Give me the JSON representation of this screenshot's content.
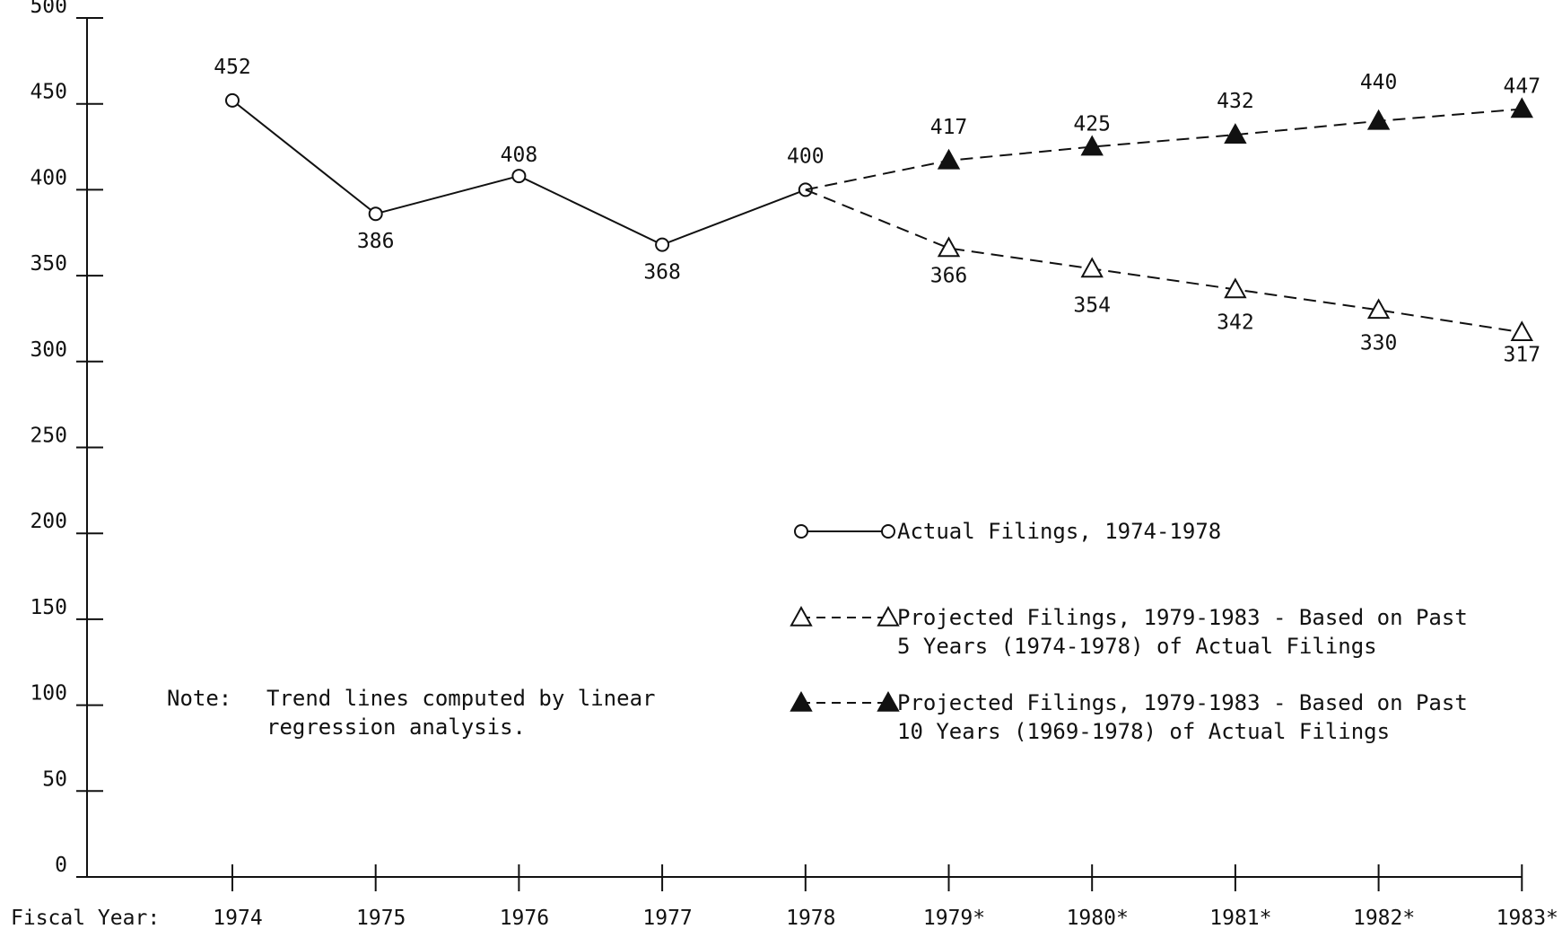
{
  "chart_data": {
    "type": "line",
    "xlabel": "Fiscal Year:",
    "ylabel": "",
    "ylim": [
      0,
      500
    ],
    "yticks": [
      0,
      50,
      100,
      150,
      200,
      250,
      300,
      350,
      400,
      450,
      500
    ],
    "categories": [
      "1974",
      "1975",
      "1976",
      "1977",
      "1978",
      "1979*",
      "1980*",
      "1981*",
      "1982*",
      "1983*"
    ],
    "grid": false,
    "series": [
      {
        "name": "Actual Filings, 1974-1978",
        "marker": "open-circle",
        "line": "solid",
        "x": [
          "1974",
          "1975",
          "1976",
          "1977",
          "1978"
        ],
        "values": [
          452,
          386,
          408,
          368,
          400
        ],
        "labels": [
          "452",
          "386",
          "408",
          "368",
          "400"
        ]
      },
      {
        "name": "Projected Filings, 1979-1983 - Based on Past 5 Years (1974-1978) of Actual Filings",
        "marker": "open-triangle",
        "line": "dashed",
        "x": [
          "1978",
          "1979*",
          "1980*",
          "1981*",
          "1982*",
          "1983*"
        ],
        "values": [
          400,
          366,
          354,
          342,
          330,
          317
        ],
        "labels": [
          "",
          "366",
          "354",
          "342",
          "330",
          "317"
        ]
      },
      {
        "name": "Projected Filings, 1979-1983 - Based on Past 10 Years (1969-1978) of Actual Filings",
        "marker": "filled-triangle",
        "line": "dashed",
        "x": [
          "1978",
          "1979*",
          "1980*",
          "1981*",
          "1982*",
          "1983*"
        ],
        "values": [
          400,
          417,
          425,
          432,
          440,
          447
        ],
        "labels": [
          "",
          "417",
          "425",
          "432",
          "440",
          "447"
        ]
      }
    ],
    "legend": {
      "placement": "lower-right",
      "entries": [
        {
          "marker": "open-circle",
          "line": "solid",
          "lines": [
            "Actual Filings, 1974-1978"
          ]
        },
        {
          "marker": "open-triangle",
          "line": "dashed",
          "lines": [
            "Projected Filings, 1979-1983 - Based on Past",
            "5 Years (1974-1978) of Actual Filings"
          ]
        },
        {
          "marker": "filled-triangle",
          "line": "dashed",
          "lines": [
            "Projected Filings, 1979-1983 - Based on Past",
            "10 Years (1969-1978) of Actual Filings"
          ]
        }
      ]
    },
    "note": {
      "label": "Note:",
      "lines": [
        "Trend lines computed by linear",
        "regression analysis."
      ]
    }
  }
}
